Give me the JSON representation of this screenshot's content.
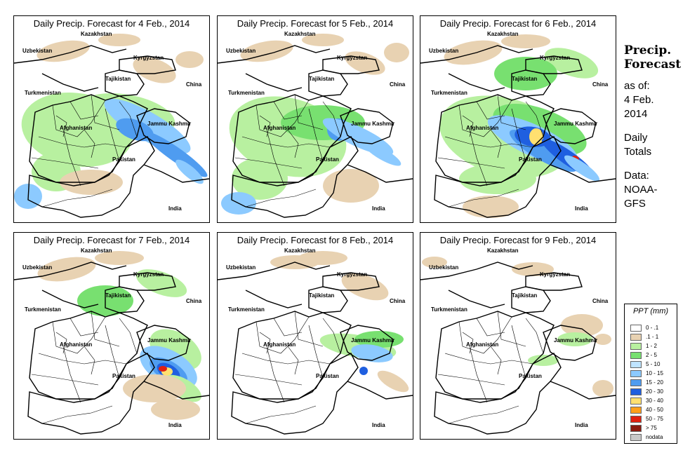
{
  "panels": [
    {
      "title": "Daily Precip. Forecast for  4 Feb., 2014",
      "day": 4
    },
    {
      "title": "Daily Precip. Forecast for  5 Feb., 2014",
      "day": 5
    },
    {
      "title": "Daily Precip. Forecast for  6 Feb., 2014",
      "day": 6
    },
    {
      "title": "Daily Precip. Forecast for  7 Feb., 2014",
      "day": 7
    },
    {
      "title": "Daily Precip. Forecast for  8 Feb., 2014",
      "day": 8
    },
    {
      "title": "Daily Precip. Forecast for  9 Feb., 2014",
      "day": 9
    }
  ],
  "map_labels": {
    "kazakhstan": "Kazakhstan",
    "uzbekistan": "Uzbekistan",
    "kyrgyzstan": "Kyrgyzstan",
    "tajikistan": "Tajikistan",
    "turkmenistan": "Turkmenistan",
    "china": "China",
    "afghanistan": "Afghanistan",
    "jammu_kashmir": "Jammu Kashmir",
    "pakistan": "Pakistan",
    "india": "India"
  },
  "sidebar": {
    "heading_line1": "Precip.",
    "heading_line2": "Forecast",
    "asof_line1": "as of:",
    "asof_line2": "4 Feb.",
    "asof_line3": "2014",
    "totals_line1": "Daily",
    "totals_line2": "Totals",
    "data_line1": "Data:",
    "data_line2": "NOAA-",
    "data_line3": "GFS"
  },
  "legend": {
    "title": "PPT (mm)",
    "entries": [
      {
        "label": "0 - .1",
        "color": "#ffffff"
      },
      {
        "label": ".1 - 1",
        "color": "#e8d2b2"
      },
      {
        "label": "1 - 2",
        "color": "#b8f0a0"
      },
      {
        "label": "2 - 5",
        "color": "#78e070"
      },
      {
        "label": "5 - 10",
        "color": "#bfe4ff"
      },
      {
        "label": "10 - 15",
        "color": "#8ccaff"
      },
      {
        "label": "15 - 20",
        "color": "#4f9cf0"
      },
      {
        "label": "20 - 30",
        "color": "#1f5fe0"
      },
      {
        "label": "30 - 40",
        "color": "#ffe070"
      },
      {
        "label": "40 - 50",
        "color": "#ff9f1a"
      },
      {
        "label": "50 - 75",
        "color": "#e02010"
      },
      {
        "label": "> 75",
        "color": "#8a1a10"
      },
      {
        "label": "nodata",
        "color": "#c8c8c8"
      }
    ]
  }
}
